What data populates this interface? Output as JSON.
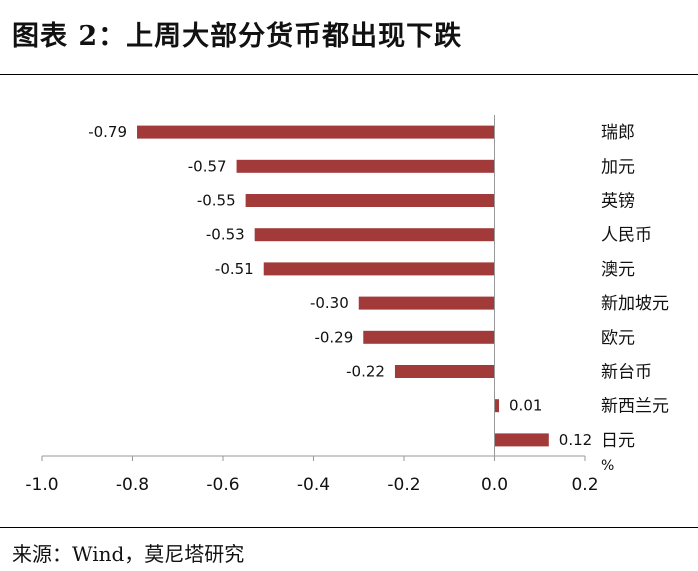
{
  "title": "图表 2：上周大部分货币都出现下跌",
  "source": "来源：Wind，莫尼塔研究",
  "chart_data": {
    "type": "bar",
    "orientation": "horizontal",
    "categories": [
      "瑞郎",
      "加元",
      "英镑",
      "人民币",
      "澳元",
      "新加坡元",
      "欧元",
      "新台币",
      "新西兰元",
      "日元"
    ],
    "values": [
      -0.79,
      -0.57,
      -0.55,
      -0.53,
      -0.51,
      -0.3,
      -0.29,
      -0.22,
      0.01,
      0.12
    ],
    "value_labels": [
      "-0.79",
      "-0.57",
      "-0.55",
      "-0.53",
      "-0.51",
      "-0.30",
      "-0.29",
      "-0.22",
      "0.01",
      "0.12"
    ],
    "xlim": [
      -1.0,
      0.2
    ],
    "xticks": [
      -1.0,
      -0.8,
      -0.6,
      -0.4,
      -0.2,
      0.0,
      0.2
    ],
    "xtick_labels": [
      "-1.0",
      "-0.8",
      "-0.6",
      "-0.4",
      "-0.2",
      "0.0",
      "0.2"
    ],
    "unit": "%",
    "bar_color": "#a33a3a",
    "grid": false
  }
}
